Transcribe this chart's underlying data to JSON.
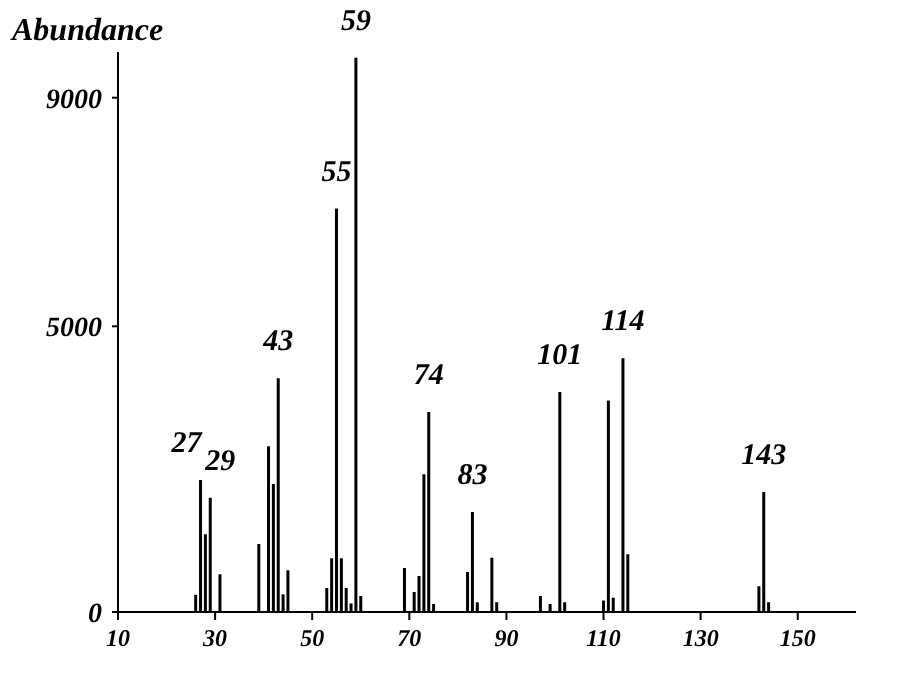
{
  "chart_data": {
    "type": "bar",
    "ylabel": "Abundance",
    "x": [
      26,
      27,
      28,
      29,
      31,
      39,
      41,
      42,
      43,
      44,
      45,
      53,
      54,
      55,
      56,
      57,
      58,
      59,
      60,
      69,
      71,
      72,
      73,
      74,
      75,
      82,
      83,
      84,
      87,
      88,
      97,
      99,
      101,
      102,
      110,
      111,
      112,
      114,
      115,
      142,
      143,
      144
    ],
    "values": [
      300,
      2310,
      1360,
      2000,
      660,
      1190,
      2900,
      2240,
      4090,
      310,
      730,
      420,
      940,
      7060,
      940,
      420,
      150,
      9700,
      280,
      770,
      350,
      630,
      2410,
      3500,
      140,
      700,
      1750,
      170,
      950,
      170,
      280,
      140,
      3850,
      170,
      200,
      3700,
      250,
      4440,
      1010,
      450,
      2100,
      170
    ],
    "color": "#000000",
    "xlim": [
      10,
      162
    ],
    "xticks": [
      10,
      30,
      50,
      70,
      90,
      110,
      130,
      150
    ],
    "ylim": [
      0,
      9800
    ],
    "yticks": [
      0,
      5000,
      9000
    ],
    "grid": false,
    "annotations": [
      {
        "text": "27",
        "x": 27,
        "y": 2310
      },
      {
        "text": "29",
        "x": 29,
        "y": 2000
      },
      {
        "text": "43",
        "x": 43,
        "y": 4090
      },
      {
        "text": "55",
        "x": 55,
        "y": 7060
      },
      {
        "text": "59",
        "x": 59,
        "y": 9700
      },
      {
        "text": "74",
        "x": 74,
        "y": 3500
      },
      {
        "text": "83",
        "x": 83,
        "y": 1750
      },
      {
        "text": "101",
        "x": 101,
        "y": 3850
      },
      {
        "text": "114",
        "x": 114,
        "y": 4440
      },
      {
        "text": "143",
        "x": 143,
        "y": 2100
      }
    ]
  }
}
